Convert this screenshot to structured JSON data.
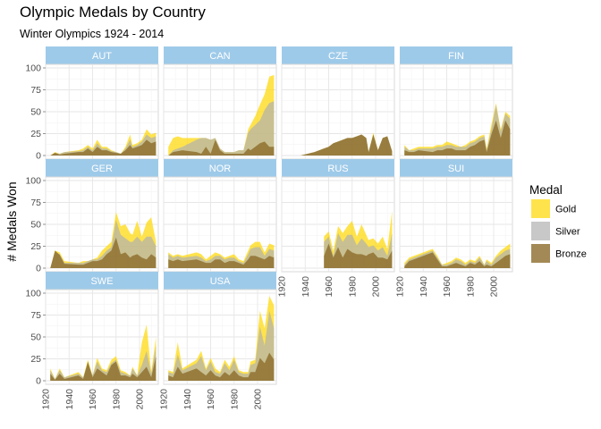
{
  "chart_data": {
    "type": "area",
    "title": "Olympic Medals by Country",
    "subtitle": "Winter Olympics 1924 - 2014",
    "ylabel": "# Medals Won",
    "xlabel": "",
    "ylim": [
      0,
      100
    ],
    "yticks": [
      0,
      25,
      50,
      75,
      100
    ],
    "xlim": [
      1920,
      2016
    ],
    "xticks": [
      1920,
      1940,
      1960,
      1980,
      2000
    ],
    "grid": true,
    "legend": {
      "title": "Medal",
      "placement": "right",
      "items": [
        {
          "label": "Gold",
          "color": "#FFD700"
        },
        {
          "label": "Silver",
          "color": "#B0B0B0"
        },
        {
          "label": "Bronze",
          "color": "#8C6B2A"
        }
      ]
    },
    "colors": {
      "strip": "#9ECAE9",
      "gold": "#FFD700",
      "silver": "#B0B0B0",
      "bronze": "#8C6B2A"
    },
    "panels": [
      {
        "name": "AUT",
        "x": [
          1924,
          1928,
          1932,
          1936,
          1948,
          1952,
          1956,
          1960,
          1964,
          1968,
          1972,
          1976,
          1980,
          1984,
          1988,
          1992,
          1994,
          1998,
          2002,
          2006,
          2010,
          2014
        ],
        "gold": [
          0,
          4,
          2,
          4,
          6,
          8,
          12,
          8,
          18,
          10,
          10,
          6,
          4,
          2,
          10,
          24,
          12,
          14,
          18,
          30,
          24,
          26
        ],
        "silver": [
          0,
          3,
          2,
          4,
          5,
          6,
          10,
          6,
          14,
          8,
          8,
          5,
          4,
          2,
          8,
          18,
          10,
          12,
          16,
          24,
          20,
          22
        ],
        "bronze": [
          0,
          3,
          1,
          2,
          4,
          4,
          8,
          4,
          10,
          6,
          6,
          4,
          3,
          2,
          6,
          12,
          8,
          10,
          12,
          18,
          14,
          16
        ]
      },
      {
        "name": "CAN",
        "x": [
          1924,
          1928,
          1932,
          1936,
          1948,
          1952,
          1956,
          1960,
          1964,
          1968,
          1972,
          1976,
          1980,
          1984,
          1988,
          1992,
          1994,
          1998,
          2002,
          2006,
          2010,
          2014
        ],
        "gold": [
          10,
          20,
          22,
          20,
          20,
          20,
          20,
          18,
          20,
          8,
          4,
          4,
          4,
          6,
          6,
          30,
          35,
          45,
          58,
          70,
          90,
          92
        ],
        "silver": [
          0,
          6,
          8,
          10,
          18,
          20,
          20,
          18,
          20,
          8,
          4,
          4,
          4,
          6,
          6,
          26,
          30,
          35,
          40,
          52,
          60,
          62
        ],
        "bronze": [
          0,
          4,
          5,
          6,
          4,
          2,
          10,
          2,
          18,
          6,
          2,
          2,
          2,
          2,
          2,
          8,
          6,
          10,
          14,
          16,
          10,
          10
        ]
      },
      {
        "name": "CZE",
        "x": [
          1924,
          1928,
          1932,
          1936,
          1948,
          1952,
          1956,
          1960,
          1964,
          1968,
          1972,
          1976,
          1980,
          1984,
          1988,
          1992,
          1994,
          1998,
          2002,
          2006,
          2010,
          2014
        ],
        "gold": [
          0,
          0,
          0,
          0,
          4,
          6,
          8,
          10,
          14,
          16,
          18,
          20,
          20,
          22,
          24,
          20,
          4,
          26,
          6,
          20,
          22,
          5
        ],
        "silver": [
          0,
          0,
          0,
          0,
          4,
          6,
          8,
          10,
          14,
          16,
          18,
          20,
          20,
          22,
          24,
          20,
          4,
          24,
          6,
          20,
          22,
          5
        ],
        "bronze": [
          0,
          0,
          0,
          0,
          4,
          6,
          8,
          10,
          14,
          16,
          18,
          20,
          20,
          22,
          24,
          20,
          4,
          24,
          6,
          20,
          22,
          5
        ]
      },
      {
        "name": "FIN",
        "x": [
          1924,
          1928,
          1932,
          1936,
          1948,
          1952,
          1956,
          1960,
          1964,
          1968,
          1972,
          1976,
          1980,
          1984,
          1988,
          1992,
          1994,
          1998,
          2002,
          2006,
          2010,
          2014
        ],
        "gold": [
          12,
          6,
          8,
          10,
          10,
          12,
          12,
          16,
          14,
          12,
          10,
          12,
          16,
          18,
          22,
          24,
          8,
          35,
          60,
          30,
          50,
          45
        ],
        "silver": [
          10,
          6,
          6,
          8,
          8,
          10,
          10,
          12,
          12,
          10,
          10,
          10,
          14,
          16,
          20,
          22,
          6,
          30,
          58,
          28,
          48,
          42
        ],
        "bronze": [
          6,
          4,
          4,
          6,
          4,
          6,
          6,
          8,
          8,
          6,
          6,
          6,
          10,
          12,
          16,
          18,
          4,
          24,
          40,
          20,
          40,
          30
        ]
      },
      {
        "name": "GER",
        "x": [
          1924,
          1928,
          1932,
          1936,
          1948,
          1952,
          1956,
          1960,
          1964,
          1968,
          1972,
          1976,
          1980,
          1984,
          1988,
          1992,
          1994,
          1998,
          2002,
          2006,
          2010,
          2014
        ],
        "gold": [
          0,
          20,
          18,
          8,
          6,
          8,
          8,
          10,
          12,
          20,
          25,
          30,
          64,
          48,
          50,
          40,
          38,
          54,
          36,
          52,
          58,
          30
        ],
        "silver": [
          0,
          18,
          16,
          6,
          6,
          6,
          8,
          10,
          10,
          14,
          20,
          24,
          55,
          38,
          34,
          30,
          30,
          36,
          30,
          36,
          36,
          25
        ],
        "bronze": [
          0,
          20,
          15,
          5,
          4,
          4,
          6,
          8,
          8,
          10,
          16,
          20,
          35,
          16,
          18,
          12,
          14,
          16,
          12,
          10,
          16,
          12
        ]
      },
      {
        "name": "NOR",
        "x": [
          1924,
          1928,
          1932,
          1936,
          1948,
          1952,
          1956,
          1960,
          1964,
          1968,
          1972,
          1976,
          1980,
          1984,
          1988,
          1992,
          1994,
          1998,
          2002,
          2006,
          2010,
          2014
        ],
        "gold": [
          18,
          14,
          16,
          14,
          18,
          16,
          10,
          14,
          18,
          16,
          12,
          14,
          16,
          10,
          8,
          20,
          26,
          30,
          30,
          18,
          28,
          26
        ],
        "silver": [
          16,
          12,
          14,
          12,
          14,
          12,
          8,
          10,
          14,
          14,
          10,
          12,
          12,
          8,
          6,
          16,
          22,
          24,
          24,
          14,
          22,
          20
        ],
        "bronze": [
          10,
          8,
          10,
          8,
          10,
          8,
          6,
          6,
          10,
          10,
          6,
          8,
          8,
          6,
          4,
          10,
          14,
          14,
          12,
          10,
          14,
          12
        ]
      },
      {
        "name": "RUS",
        "x": [
          1956,
          1960,
          1964,
          1968,
          1972,
          1976,
          1980,
          1984,
          1988,
          1992,
          1994,
          1998,
          2002,
          2006,
          2010,
          2014
        ],
        "gold": [
          36,
          42,
          20,
          48,
          40,
          48,
          54,
          36,
          50,
          38,
          32,
          34,
          28,
          36,
          22,
          65
        ],
        "silver": [
          30,
          36,
          14,
          40,
          30,
          38,
          38,
          26,
          34,
          28,
          24,
          26,
          20,
          24,
          14,
          40
        ],
        "bronze": [
          14,
          28,
          12,
          24,
          12,
          22,
          18,
          16,
          16,
          14,
          16,
          18,
          12,
          12,
          10,
          20
        ]
      },
      {
        "name": "SUI",
        "x": [
          1924,
          1928,
          1932,
          1936,
          1948,
          1952,
          1956,
          1960,
          1964,
          1968,
          1972,
          1976,
          1980,
          1984,
          1988,
          1992,
          1994,
          1998,
          2002,
          2006,
          2010,
          2014
        ],
        "gold": [
          6,
          12,
          14,
          16,
          22,
          14,
          4,
          6,
          8,
          12,
          10,
          6,
          10,
          8,
          14,
          4,
          10,
          6,
          14,
          20,
          24,
          28
        ],
        "silver": [
          4,
          10,
          12,
          14,
          20,
          12,
          4,
          4,
          6,
          10,
          8,
          4,
          8,
          6,
          12,
          4,
          8,
          4,
          12,
          16,
          20,
          22
        ],
        "bronze": [
          2,
          8,
          10,
          12,
          18,
          10,
          2,
          2,
          4,
          6,
          4,
          2,
          6,
          4,
          8,
          2,
          4,
          2,
          6,
          10,
          14,
          16
        ]
      },
      {
        "name": "SWE",
        "x": [
          1924,
          1928,
          1932,
          1936,
          1948,
          1952,
          1956,
          1960,
          1964,
          1968,
          1972,
          1976,
          1980,
          1984,
          1988,
          1992,
          1994,
          1998,
          2002,
          2006,
          2010,
          2014
        ],
        "gold": [
          14,
          2,
          14,
          4,
          10,
          4,
          24,
          6,
          26,
          14,
          12,
          24,
          28,
          12,
          10,
          6,
          16,
          6,
          44,
          64,
          10,
          50
        ],
        "silver": [
          12,
          2,
          12,
          4,
          8,
          4,
          20,
          6,
          22,
          12,
          10,
          20,
          24,
          10,
          8,
          6,
          14,
          6,
          18,
          34,
          8,
          40
        ],
        "bronze": [
          8,
          1,
          8,
          2,
          6,
          2,
          22,
          4,
          14,
          10,
          6,
          18,
          22,
          6,
          6,
          4,
          8,
          4,
          10,
          16,
          4,
          28
        ]
      },
      {
        "name": "USA",
        "x": [
          1924,
          1928,
          1932,
          1936,
          1948,
          1952,
          1956,
          1960,
          1964,
          1968,
          1972,
          1976,
          1980,
          1984,
          1988,
          1992,
          1994,
          1998,
          2002,
          2006,
          2010,
          2014
        ],
        "gold": [
          12,
          10,
          44,
          14,
          24,
          34,
          14,
          26,
          14,
          10,
          24,
          16,
          28,
          12,
          10,
          10,
          22,
          24,
          80,
          60,
          97,
          86
        ],
        "silver": [
          10,
          8,
          30,
          12,
          20,
          28,
          12,
          22,
          10,
          8,
          20,
          12,
          24,
          10,
          8,
          8,
          18,
          20,
          62,
          40,
          80,
          60
        ],
        "bronze": [
          6,
          4,
          16,
          8,
          14,
          10,
          6,
          12,
          6,
          4,
          10,
          6,
          12,
          6,
          4,
          4,
          10,
          10,
          26,
          20,
          32,
          24
        ]
      }
    ]
  }
}
